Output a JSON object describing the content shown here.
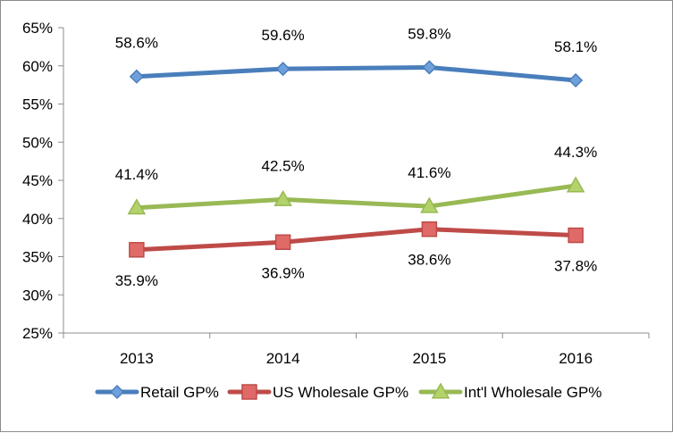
{
  "chart_data": {
    "type": "line",
    "categories": [
      "2013",
      "2014",
      "2015",
      "2016"
    ],
    "ylim": [
      25,
      65
    ],
    "yticks": [
      25,
      30,
      35,
      40,
      45,
      50,
      55,
      60,
      65
    ],
    "ytick_labels": [
      "25%",
      "30%",
      "35%",
      "40%",
      "45%",
      "50%",
      "55%",
      "60%",
      "65%"
    ],
    "grid": false,
    "legend_position": "bottom",
    "series": [
      {
        "name": "Retail GP%",
        "values": [
          58.6,
          59.6,
          59.8,
          58.1
        ],
        "labels": [
          "58.6%",
          "59.6%",
          "59.8%",
          "58.1%"
        ],
        "label_position": "above",
        "marker": "diamond",
        "color": "#4a7ebb",
        "marker_fill": "#6fa0dc"
      },
      {
        "name": "US Wholesale GP%",
        "values": [
          35.9,
          36.9,
          38.6,
          37.8
        ],
        "labels": [
          "35.9%",
          "36.9%",
          "38.6%",
          "37.8%"
        ],
        "label_position": "below",
        "marker": "square",
        "color": "#be4b48",
        "marker_fill": "#e06a68"
      },
      {
        "name": "Int'l Wholesale GP%",
        "values": [
          41.4,
          42.5,
          41.6,
          44.3
        ],
        "labels": [
          "41.4%",
          "42.5%",
          "41.6%",
          "44.3%"
        ],
        "label_position": "above",
        "marker": "triangle",
        "color": "#98b954",
        "marker_fill": "#b3d36a"
      }
    ]
  }
}
